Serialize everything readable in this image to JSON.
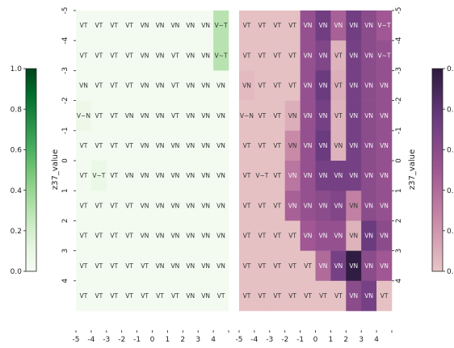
{
  "chart_data": [
    {
      "type": "heatmap",
      "colormap": "Greens",
      "ylabel": "z37_value",
      "x_ticks": [
        "-5",
        "-4",
        "-3",
        "-2",
        "-1",
        "0",
        "1",
        "2",
        "3",
        "4"
      ],
      "y_ticks": [
        "-5",
        "-4",
        "-3",
        "-2",
        "-1",
        "0",
        "1",
        "2",
        "3",
        "4"
      ],
      "colorbar_range": [
        0.0,
        1.0
      ],
      "colorbar_ticks": [
        "0.0",
        "0.2",
        "0.4",
        "0.6",
        "0.8",
        "1.0"
      ],
      "labels": [
        [
          "VT",
          "VT",
          "VT",
          "VT",
          "VN",
          "VN",
          "VN",
          "VN",
          "VN",
          "V~T"
        ],
        [
          "VT",
          "VT",
          "VT",
          "VT",
          "VN",
          "VN",
          "VT",
          "VN",
          "VN",
          "V~T"
        ],
        [
          "VN",
          "VT",
          "VT",
          "VT",
          "VN",
          "VN",
          "VT",
          "VN",
          "VN",
          "VN"
        ],
        [
          "V~N",
          "VT",
          "VT",
          "VN",
          "VN",
          "VN",
          "VT",
          "VN",
          "VN",
          "VN"
        ],
        [
          "VT",
          "VT",
          "VT",
          "VT",
          "VN",
          "VN",
          "VN",
          "VN",
          "VN",
          "VN"
        ],
        [
          "VT",
          "V~T",
          "VT",
          "VN",
          "VN",
          "VN",
          "VN",
          "VN",
          "VN",
          "VN"
        ],
        [
          "VT",
          "VT",
          "VT",
          "VT",
          "VN",
          "VN",
          "VN",
          "VN",
          "VN",
          "VN"
        ],
        [
          "VT",
          "VT",
          "VT",
          "VT",
          "VN",
          "VN",
          "VN",
          "VN",
          "VN",
          "VN"
        ],
        [
          "VT",
          "VT",
          "VT",
          "VT",
          "VT",
          "VN",
          "VN",
          "VN",
          "VN",
          "VN"
        ],
        [
          "VT",
          "VT",
          "VT",
          "VT",
          "VT",
          "VT",
          "VT",
          "VN",
          "VN",
          "VT"
        ]
      ],
      "values": [
        [
          0.03,
          0.03,
          0.03,
          0.03,
          0.03,
          0.03,
          0.03,
          0.03,
          0.03,
          0.3
        ],
        [
          0.03,
          0.03,
          0.03,
          0.03,
          0.03,
          0.03,
          0.03,
          0.03,
          0.03,
          0.3
        ],
        [
          0.03,
          0.03,
          0.03,
          0.03,
          0.03,
          0.03,
          0.03,
          0.03,
          0.03,
          0.03
        ],
        [
          0.07,
          0.03,
          0.03,
          0.03,
          0.03,
          0.03,
          0.03,
          0.03,
          0.03,
          0.03
        ],
        [
          0.03,
          0.03,
          0.03,
          0.03,
          0.03,
          0.03,
          0.03,
          0.03,
          0.03,
          0.03
        ],
        [
          0.03,
          0.08,
          0.03,
          0.03,
          0.03,
          0.03,
          0.03,
          0.03,
          0.03,
          0.03
        ],
        [
          0.03,
          0.03,
          0.03,
          0.03,
          0.03,
          0.03,
          0.03,
          0.03,
          0.03,
          0.03
        ],
        [
          0.03,
          0.03,
          0.03,
          0.03,
          0.03,
          0.03,
          0.03,
          0.03,
          0.03,
          0.03
        ],
        [
          0.03,
          0.03,
          0.03,
          0.03,
          0.03,
          0.03,
          0.03,
          0.03,
          0.03,
          0.03
        ],
        [
          0.03,
          0.03,
          0.03,
          0.03,
          0.03,
          0.03,
          0.03,
          0.03,
          0.03,
          0.03
        ]
      ]
    },
    {
      "type": "heatmap",
      "colormap": "Pink-to-purple",
      "ylabel": "z37_value",
      "x_ticks": [
        "-5",
        "-4",
        "-3",
        "-2",
        "-1",
        "0",
        "1",
        "2",
        "3",
        "4"
      ],
      "y_ticks": [
        "-5",
        "-4",
        "-3",
        "-2",
        "-1",
        "0",
        "1",
        "2",
        "3",
        "4"
      ],
      "colorbar_ticks": [
        "0.",
        "0.",
        "0.",
        "0.",
        "0.",
        "0."
      ],
      "labels": [
        [
          "VT",
          "VT",
          "VT",
          "VT",
          "VN",
          "VN",
          "VN",
          "VN",
          "VN",
          "V~T"
        ],
        [
          "VT",
          "VT",
          "VT",
          "VT",
          "VN",
          "VN",
          "VT",
          "VN",
          "VN",
          "V~T"
        ],
        [
          "VN",
          "VT",
          "VT",
          "VT",
          "VN",
          "VN",
          "VT",
          "VN",
          "VN",
          "VN"
        ],
        [
          "V~N",
          "VT",
          "VT",
          "VN",
          "VN",
          "VN",
          "VT",
          "VN",
          "VN",
          "VN"
        ],
        [
          "VT",
          "VT",
          "VT",
          "VN",
          "VN",
          "VN",
          "VN",
          "VN",
          "VN",
          "VN"
        ],
        [
          "VT",
          "V~T",
          "VT",
          "VN",
          "VN",
          "VN",
          "VN",
          "VN",
          "VN",
          "VN"
        ],
        [
          "VT",
          "VT",
          "VT",
          "VN",
          "VN",
          "VN",
          "VN",
          "VN",
          "VN",
          "VN"
        ],
        [
          "VT",
          "VT",
          "VT",
          "VT",
          "VN",
          "VN",
          "VN",
          "VN",
          "VN",
          "VN"
        ],
        [
          "VT",
          "VT",
          "VT",
          "VT",
          "VT",
          "VN",
          "VN",
          "VN",
          "VN",
          "VN"
        ],
        [
          "VT",
          "VT",
          "VT",
          "VT",
          "VT",
          "VT",
          "VT",
          "VN",
          "VN",
          "VT"
        ]
      ],
      "values": [
        [
          0.02,
          0.02,
          0.02,
          0.02,
          0.55,
          0.72,
          0.45,
          0.72,
          0.6,
          0.5
        ],
        [
          0.02,
          0.02,
          0.02,
          0.02,
          0.55,
          0.65,
          0.08,
          0.7,
          0.6,
          0.55
        ],
        [
          0.05,
          0.02,
          0.02,
          0.02,
          0.55,
          0.75,
          0.1,
          0.7,
          0.6,
          0.55
        ],
        [
          0.02,
          0.02,
          0.02,
          0.1,
          0.55,
          0.7,
          0.08,
          0.7,
          0.6,
          0.55
        ],
        [
          0.02,
          0.02,
          0.02,
          0.25,
          0.55,
          0.75,
          0.08,
          0.7,
          0.6,
          0.55
        ],
        [
          0.02,
          0.02,
          0.02,
          0.35,
          0.55,
          0.7,
          0.7,
          0.7,
          0.6,
          0.55
        ],
        [
          0.02,
          0.02,
          0.02,
          0.45,
          0.55,
          0.6,
          0.65,
          0.3,
          0.6,
          0.55
        ],
        [
          0.02,
          0.02,
          0.02,
          0.02,
          0.5,
          0.55,
          0.55,
          0.08,
          0.75,
          0.6
        ],
        [
          0.02,
          0.02,
          0.02,
          0.02,
          0.02,
          0.4,
          0.7,
          0.98,
          0.6,
          0.5
        ],
        [
          0.02,
          0.02,
          0.02,
          0.02,
          0.02,
          0.02,
          0.02,
          0.6,
          0.7,
          0.02
        ]
      ]
    }
  ]
}
